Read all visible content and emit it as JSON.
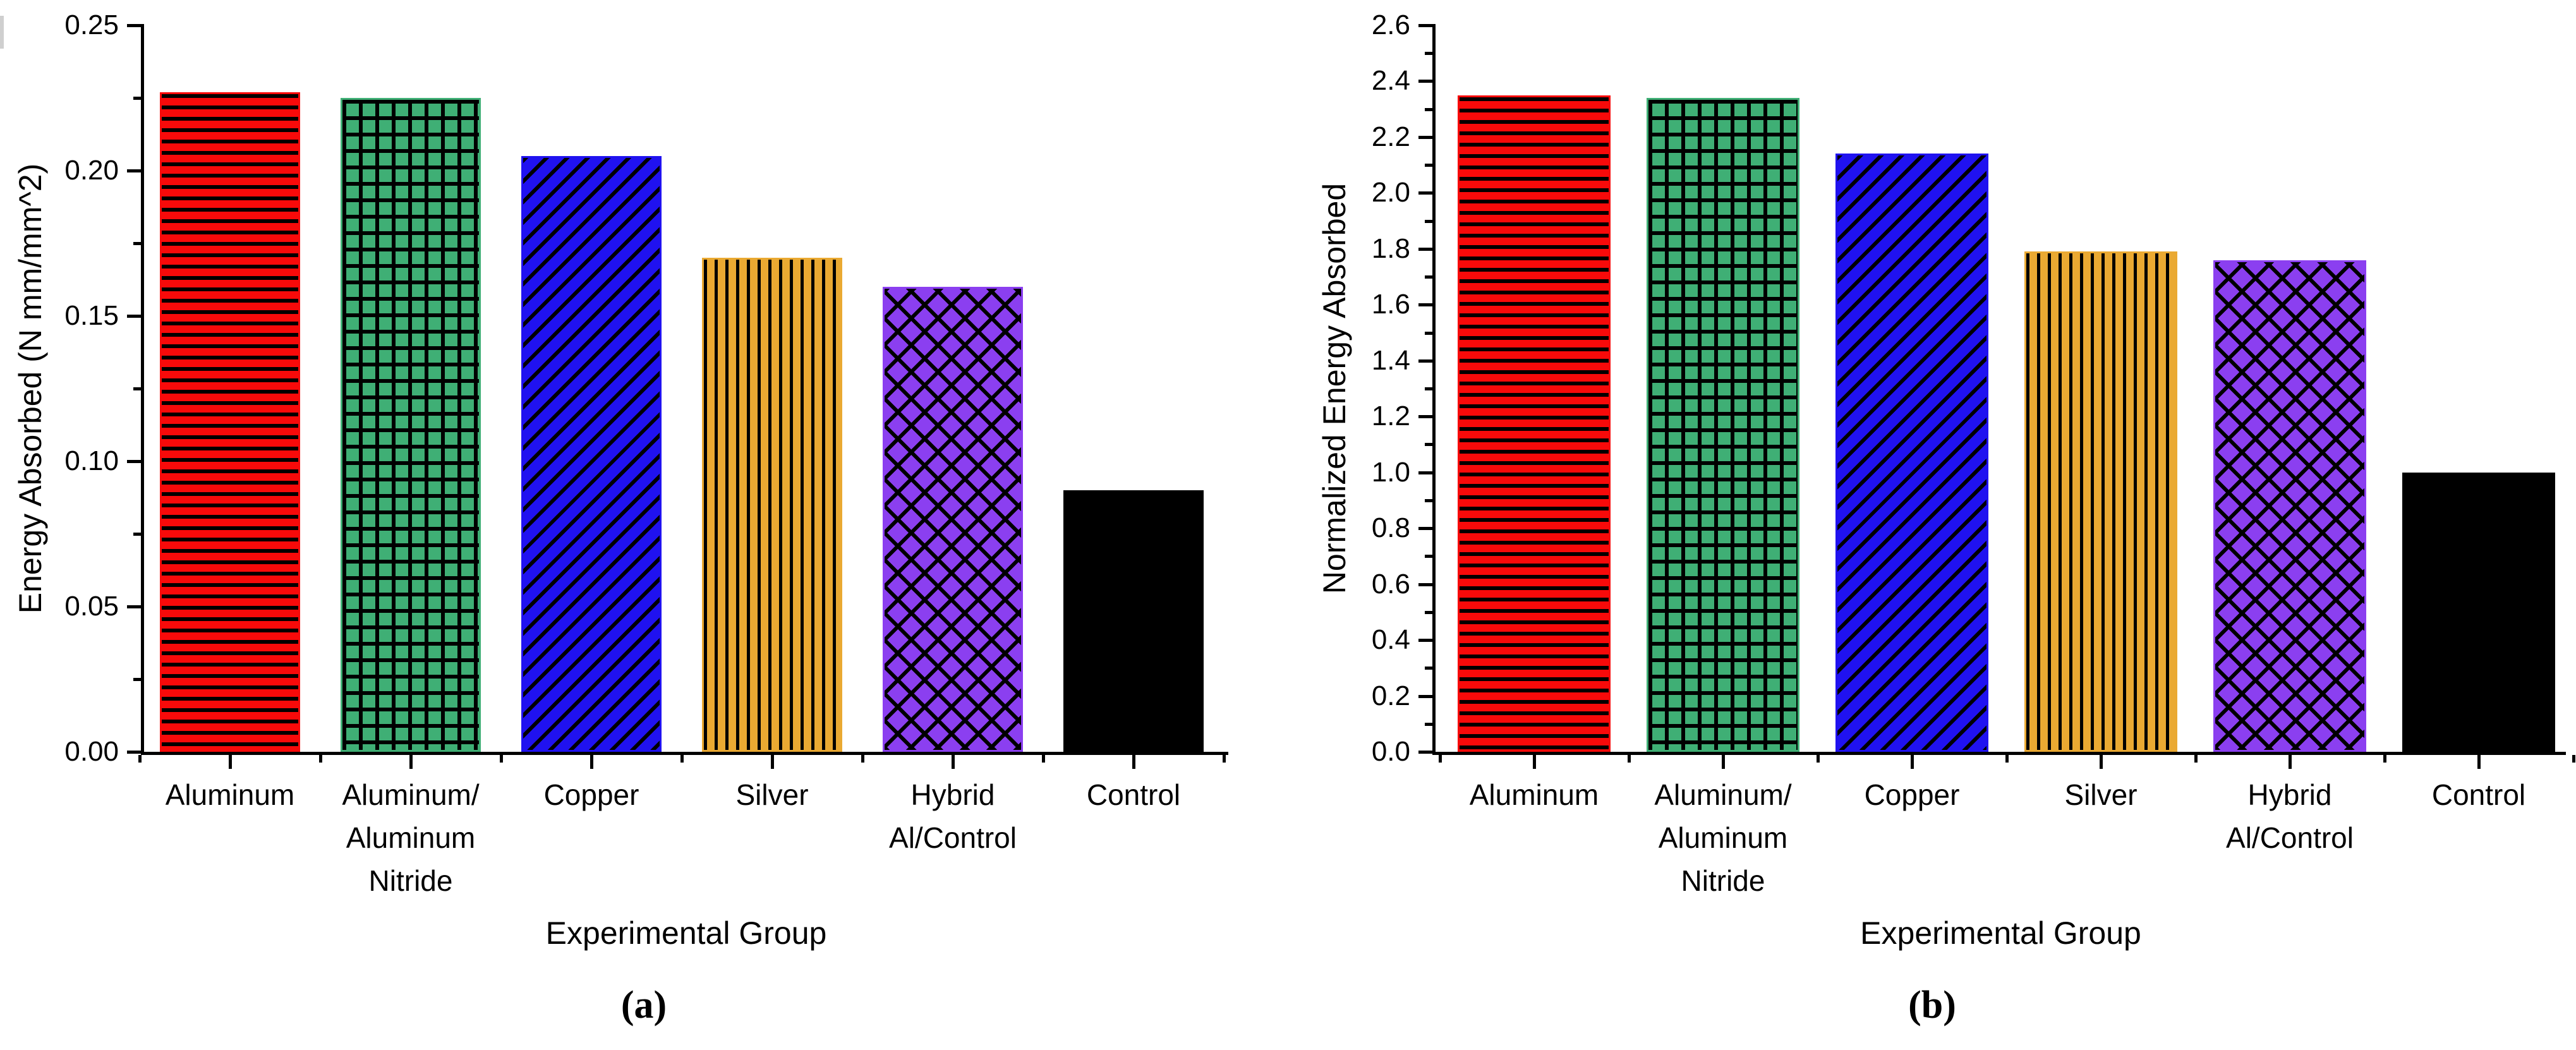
{
  "captions": {
    "a": "(a)",
    "b": "(b)"
  },
  "colors": {
    "axis": "#000000",
    "background": "#ffffff"
  },
  "chart_data": [
    {
      "type": "bar",
      "title": "",
      "xlabel": "Experimental Group",
      "ylabel": "Energy Absorbed (N mm/mm^2)",
      "categories": [
        "Aluminum",
        "Aluminum/Aluminum Nitride",
        "Copper",
        "Silver",
        "Hybrid Al/Control",
        "Control"
      ],
      "category_lines": [
        [
          "Aluminum"
        ],
        [
          "Aluminum/",
          "Aluminum",
          "Nitride"
        ],
        [
          "Copper"
        ],
        [
          "Silver"
        ],
        [
          "Hybrid",
          "Al/Control"
        ],
        [
          "Control"
        ]
      ],
      "values": [
        0.227,
        0.225,
        0.205,
        0.17,
        0.16,
        0.09
      ],
      "ylim": [
        0,
        0.25
      ],
      "yticks": [
        "0.00",
        "0.05",
        "0.10",
        "0.15",
        "0.20",
        "0.25"
      ],
      "grid": "off",
      "legend": "none",
      "bar_styles": [
        {
          "color": "#F80A0A",
          "pattern": "horizontal-stripes"
        },
        {
          "color": "#3FAF75",
          "pattern": "grid-hatch"
        },
        {
          "color": "#2012F0",
          "pattern": "diagonal-stripes"
        },
        {
          "color": "#EAA932",
          "pattern": "vertical-stripes"
        },
        {
          "color": "#8B3FF0",
          "pattern": "diamond-crosshatch"
        },
        {
          "color": "#000000",
          "pattern": "solid"
        }
      ]
    },
    {
      "type": "bar",
      "title": "",
      "xlabel": "Experimental Group",
      "ylabel": "Normalized Energy Absorbed",
      "categories": [
        "Aluminum",
        "Aluminum/Aluminum Nitride",
        "Copper",
        "Silver",
        "Hybrid Al/Control",
        "Control"
      ],
      "category_lines": [
        [
          "Aluminum"
        ],
        [
          "Aluminum/",
          "Aluminum",
          "Nitride"
        ],
        [
          "Copper"
        ],
        [
          "Silver"
        ],
        [
          "Hybrid",
          "Al/Control"
        ],
        [
          "Control"
        ]
      ],
      "values": [
        2.35,
        2.34,
        2.14,
        1.79,
        1.76,
        1.0
      ],
      "ylim": [
        0,
        2.6
      ],
      "yticks": [
        "0.0",
        "0.2",
        "0.4",
        "0.6",
        "0.8",
        "1.0",
        "1.2",
        "1.4",
        "1.6",
        "1.8",
        "2.0",
        "2.2",
        "2.4",
        "2.6"
      ],
      "grid": "off",
      "legend": "none",
      "bar_styles": [
        {
          "color": "#F80A0A",
          "pattern": "horizontal-stripes"
        },
        {
          "color": "#3FAF75",
          "pattern": "grid-hatch"
        },
        {
          "color": "#2012F0",
          "pattern": "diagonal-stripes"
        },
        {
          "color": "#EAA932",
          "pattern": "vertical-stripes"
        },
        {
          "color": "#8B3FF0",
          "pattern": "diamond-crosshatch"
        },
        {
          "color": "#000000",
          "pattern": "solid"
        }
      ]
    }
  ]
}
